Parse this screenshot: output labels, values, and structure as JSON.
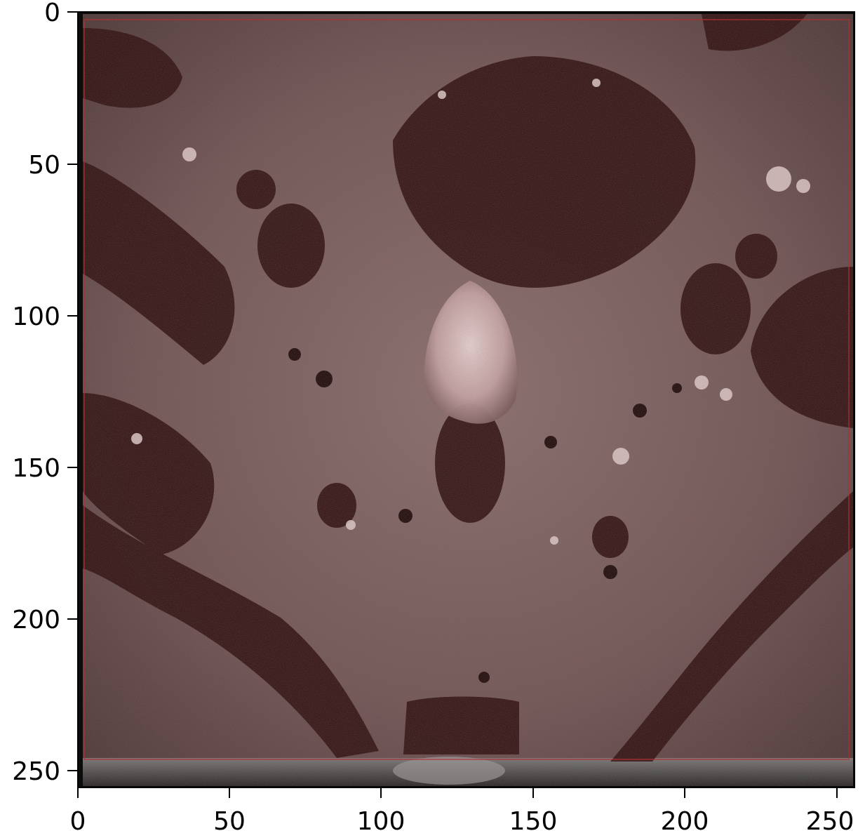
{
  "figure": {
    "image_description": "Axial pelvic MRI slice (grayscale) with a semi-transparent dark-red overlay mask",
    "overlay_color": "#5a1414",
    "overlay_outline_color": "#b03030",
    "frame_color": "#000000"
  },
  "axes": {
    "x_ticks": [
      "0",
      "50",
      "100",
      "150",
      "200",
      "250"
    ],
    "y_ticks": [
      "0",
      "50",
      "100",
      "150",
      "200",
      "250"
    ]
  }
}
